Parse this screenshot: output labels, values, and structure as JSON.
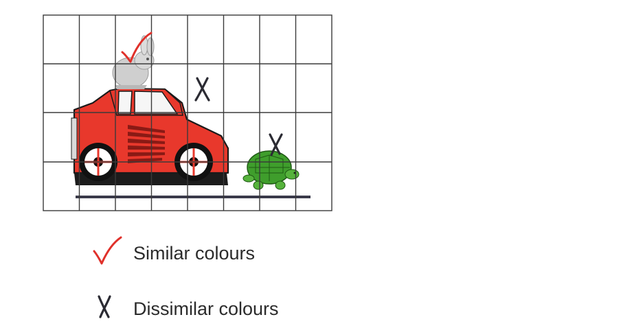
{
  "grid": {
    "columns": 8,
    "rows": 4
  },
  "colors": {
    "grid_line": "#3a3a3a",
    "car_red": "#e8382c",
    "turtle_green": "#3f9e2c",
    "rabbit_gray": "#cfcfcf",
    "check_red": "#e0302a",
    "cross_dark": "#2b2b33",
    "ground": "#3a3a4a"
  },
  "scene_objects": [
    {
      "id": "rabbit",
      "icon": "rabbit-icon",
      "mark": "check"
    },
    {
      "id": "car",
      "icon": "car-icon",
      "mark": "none"
    },
    {
      "id": "background",
      "icon": "grid-cell",
      "mark": "cross"
    },
    {
      "id": "turtle",
      "icon": "turtle-icon",
      "mark": "cross"
    }
  ],
  "legend": {
    "similar": {
      "icon": "check-icon",
      "label": "Similar colours"
    },
    "dissimilar": {
      "icon": "cross-icon",
      "label": "Dissimilar colours"
    }
  }
}
